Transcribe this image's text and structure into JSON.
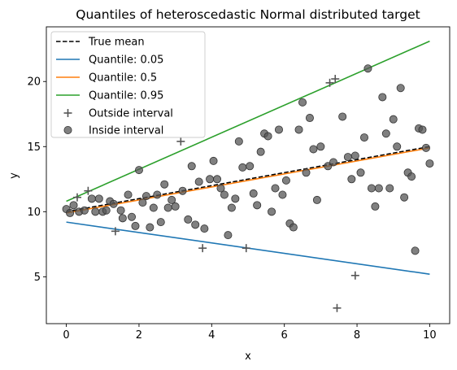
{
  "chart_data": {
    "type": "scatter",
    "title": "Quantiles of heteroscedastic Normal distributed target",
    "xlabel": "x",
    "ylabel": "y",
    "xlim": [
      -0.55,
      10.55
    ],
    "ylim": [
      1.4,
      24.2
    ],
    "xticks": [
      0,
      2,
      4,
      6,
      8,
      10
    ],
    "yticks": [
      5,
      10,
      15,
      20
    ],
    "legend_position": "top-left",
    "lines": [
      {
        "name": "True mean",
        "color": "#000000",
        "dashed": true,
        "x": [
          0,
          10
        ],
        "y": [
          10,
          15
        ]
      },
      {
        "name": "Quantile: 0.05",
        "color": "#1f77b4",
        "dashed": false,
        "x": [
          0,
          10
        ],
        "y": [
          9.2,
          5.2
        ]
      },
      {
        "name": "Quantile: 0.5",
        "color": "#ff7f0e",
        "dashed": false,
        "x": [
          0,
          10
        ],
        "y": [
          9.9,
          14.9
        ]
      },
      {
        "name": "Quantile: 0.95",
        "color": "#2ca02c",
        "dashed": false,
        "x": [
          0,
          10
        ],
        "y": [
          10.8,
          23.1
        ]
      }
    ],
    "outside": {
      "name": "Outside interval",
      "color": "#555555",
      "points": [
        [
          0.3,
          11.1
        ],
        [
          0.6,
          11.6
        ],
        [
          1.35,
          8.5
        ],
        [
          3.15,
          15.4
        ],
        [
          3.75,
          7.2
        ],
        [
          4.95,
          7.2
        ],
        [
          7.25,
          19.9
        ],
        [
          7.4,
          20.2
        ],
        [
          7.95,
          5.1
        ],
        [
          7.45,
          2.6
        ]
      ]
    },
    "inside": {
      "name": "Inside interval",
      "color": "#555555",
      "points": [
        [
          0.0,
          10.2
        ],
        [
          0.1,
          9.9
        ],
        [
          0.2,
          10.5
        ],
        [
          0.35,
          10.0
        ],
        [
          0.5,
          10.1
        ],
        [
          0.7,
          11.0
        ],
        [
          0.8,
          10.0
        ],
        [
          0.9,
          11.0
        ],
        [
          1.0,
          10.0
        ],
        [
          1.1,
          10.1
        ],
        [
          1.2,
          10.8
        ],
        [
          1.3,
          10.6
        ],
        [
          1.5,
          10.1
        ],
        [
          1.55,
          9.5
        ],
        [
          1.7,
          11.3
        ],
        [
          1.8,
          9.6
        ],
        [
          1.9,
          8.9
        ],
        [
          2.0,
          13.2
        ],
        [
          2.1,
          10.7
        ],
        [
          2.2,
          11.2
        ],
        [
          2.3,
          8.8
        ],
        [
          2.4,
          10.3
        ],
        [
          2.5,
          11.3
        ],
        [
          2.6,
          9.2
        ],
        [
          2.7,
          12.1
        ],
        [
          2.8,
          10.3
        ],
        [
          2.9,
          10.9
        ],
        [
          3.0,
          10.4
        ],
        [
          3.2,
          11.6
        ],
        [
          3.35,
          9.4
        ],
        [
          3.45,
          13.5
        ],
        [
          3.55,
          9.0
        ],
        [
          3.65,
          12.3
        ],
        [
          3.8,
          8.7
        ],
        [
          3.95,
          12.5
        ],
        [
          4.05,
          13.9
        ],
        [
          4.15,
          12.5
        ],
        [
          4.25,
          11.8
        ],
        [
          4.35,
          11.3
        ],
        [
          4.45,
          8.2
        ],
        [
          4.55,
          10.3
        ],
        [
          4.65,
          11.0
        ],
        [
          4.75,
          15.4
        ],
        [
          4.85,
          13.4
        ],
        [
          5.05,
          13.5
        ],
        [
          5.15,
          11.4
        ],
        [
          5.25,
          10.5
        ],
        [
          5.35,
          14.6
        ],
        [
          5.45,
          16.0
        ],
        [
          5.55,
          15.8
        ],
        [
          5.65,
          10.0
        ],
        [
          5.75,
          11.8
        ],
        [
          5.85,
          16.3
        ],
        [
          5.95,
          11.3
        ],
        [
          6.05,
          12.4
        ],
        [
          6.15,
          9.1
        ],
        [
          6.25,
          8.8
        ],
        [
          6.4,
          16.3
        ],
        [
          6.5,
          18.4
        ],
        [
          6.6,
          13.0
        ],
        [
          6.7,
          17.2
        ],
        [
          6.8,
          14.8
        ],
        [
          6.9,
          10.9
        ],
        [
          7.0,
          15.0
        ],
        [
          7.2,
          13.5
        ],
        [
          7.35,
          13.8
        ],
        [
          7.6,
          17.3
        ],
        [
          7.75,
          14.2
        ],
        [
          7.85,
          12.5
        ],
        [
          7.95,
          14.3
        ],
        [
          8.1,
          13.0
        ],
        [
          8.2,
          15.7
        ],
        [
          8.3,
          21.0
        ],
        [
          8.4,
          11.8
        ],
        [
          8.5,
          10.4
        ],
        [
          8.6,
          11.8
        ],
        [
          8.7,
          18.8
        ],
        [
          8.8,
          16.0
        ],
        [
          8.9,
          11.8
        ],
        [
          9.0,
          17.1
        ],
        [
          9.1,
          15.0
        ],
        [
          9.2,
          19.5
        ],
        [
          9.3,
          11.1
        ],
        [
          9.4,
          13.0
        ],
        [
          9.5,
          12.7
        ],
        [
          9.6,
          7.0
        ],
        [
          9.7,
          16.4
        ],
        [
          9.8,
          16.3
        ],
        [
          9.9,
          14.9
        ],
        [
          10.0,
          13.7
        ]
      ]
    }
  }
}
